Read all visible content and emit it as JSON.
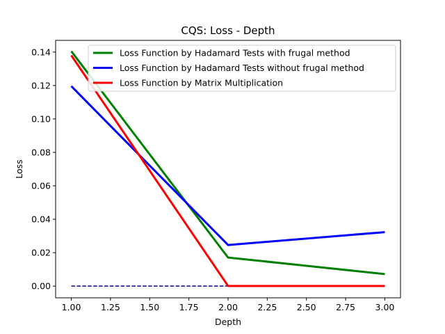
{
  "chart_data": {
    "type": "line",
    "title": "CQS: Loss - Depth",
    "xlabel": "Depth",
    "ylabel": "Loss",
    "xlim": [
      0.9,
      3.1
    ],
    "ylim": [
      -0.007,
      0.147
    ],
    "xticks": [
      1.0,
      1.25,
      1.5,
      1.75,
      2.0,
      2.25,
      2.5,
      2.75,
      3.0
    ],
    "xtick_labels": [
      "1.00",
      "1.25",
      "1.50",
      "1.75",
      "2.00",
      "2.25",
      "2.50",
      "2.75",
      "3.00"
    ],
    "yticks": [
      0.0,
      0.02,
      0.04,
      0.06,
      0.08,
      0.1,
      0.12,
      0.14
    ],
    "ytick_labels": [
      "0.00",
      "0.02",
      "0.04",
      "0.06",
      "0.08",
      "0.10",
      "0.12",
      "0.14"
    ],
    "grid": false,
    "legend_position": "top-right",
    "series": [
      {
        "name": "Loss Function by Hadamard Tests with frugal method",
        "color": "#008000",
        "x": [
          1,
          2,
          3
        ],
        "values": [
          0.1405,
          0.0171,
          0.0072
        ]
      },
      {
        "name": "Loss Function by Hadamard Tests without frugal method",
        "color": "#0000ff",
        "x": [
          1,
          2,
          3
        ],
        "values": [
          0.1196,
          0.0246,
          0.0323
        ]
      },
      {
        "name": "Loss Function by Matrix Multiplication",
        "color": "#ff0000",
        "x": [
          1,
          2,
          3
        ],
        "values": [
          0.138,
          0.0001,
          0.0001
        ]
      }
    ],
    "reference_line": {
      "color": "#00008b",
      "style": "dashed",
      "x": [
        1,
        2
      ],
      "values": [
        0.0,
        0.0
      ]
    }
  }
}
